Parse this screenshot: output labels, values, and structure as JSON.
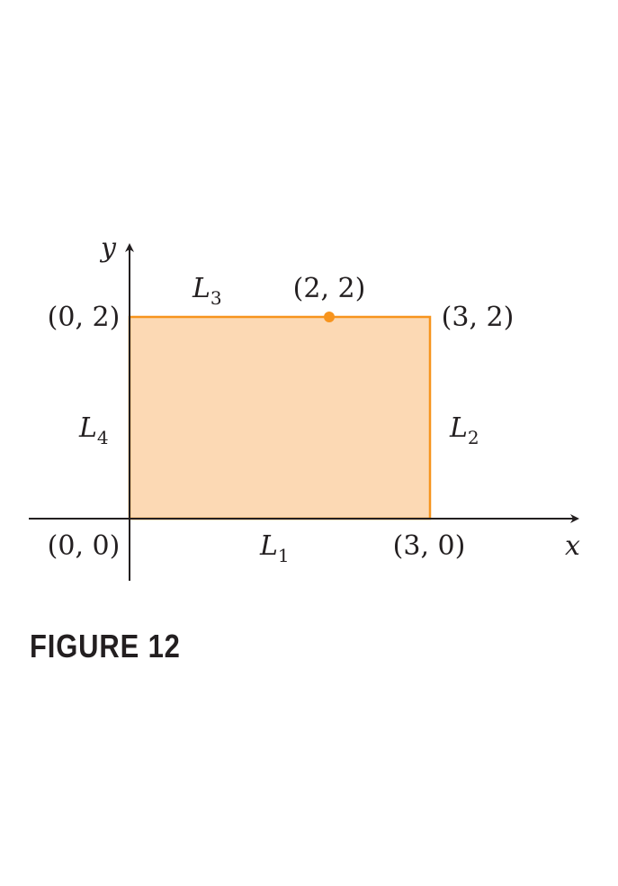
{
  "figure": {
    "caption": "FIGURE 12",
    "axes": {
      "x_label": "x",
      "y_label": "y"
    },
    "region": {
      "x_range": [
        0,
        3
      ],
      "y_range": [
        0,
        2
      ],
      "fill": "#fcd9b4",
      "edge": "#f7941d"
    },
    "vertices": [
      {
        "x": 0,
        "y": 0,
        "label": "(0, 0)"
      },
      {
        "x": 3,
        "y": 0,
        "label": "(3, 0)"
      },
      {
        "x": 3,
        "y": 2,
        "label": "(3, 2)"
      },
      {
        "x": 0,
        "y": 2,
        "label": "(0, 2)"
      }
    ],
    "point": {
      "x": 2,
      "y": 2,
      "label": "(2, 2)",
      "color": "#f7941d"
    },
    "segments": {
      "L1": {
        "main": "L",
        "sub": "1"
      },
      "L2": {
        "main": "L",
        "sub": "2"
      },
      "L3": {
        "main": "L",
        "sub": "3"
      },
      "L4": {
        "main": "L",
        "sub": "4"
      }
    },
    "axis_color": "#231f20"
  }
}
